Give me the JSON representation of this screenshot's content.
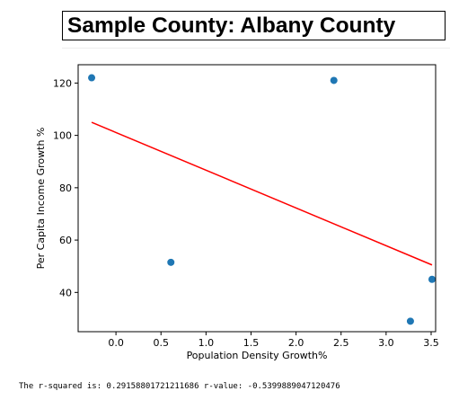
{
  "header": {
    "title": "Sample County: Albany County"
  },
  "stats": {
    "text": "The r-squared is: 0.29158801721211686 r-value: -0.5399889047120476"
  },
  "chart_data": {
    "type": "scatter",
    "title": "",
    "xlabel": "Population Density Growth%",
    "ylabel": "Per Capita Income Growth %",
    "xlim": [
      -0.42,
      3.55
    ],
    "ylim": [
      25,
      127
    ],
    "xticks": [
      0.0,
      0.5,
      1.0,
      1.5,
      2.0,
      2.5,
      3.0,
      3.5
    ],
    "xtick_labels": [
      "0.0",
      "0.5",
      "1.0",
      "1.5",
      "2.0",
      "2.5",
      "3.0",
      "3.5"
    ],
    "yticks": [
      40,
      60,
      80,
      100,
      120
    ],
    "ytick_labels": [
      "40",
      "60",
      "80",
      "100",
      "120"
    ],
    "grid": false,
    "points": [
      {
        "x": -0.27,
        "y": 122
      },
      {
        "x": 0.61,
        "y": 51.5
      },
      {
        "x": 2.42,
        "y": 121
      },
      {
        "x": 3.27,
        "y": 29
      },
      {
        "x": 3.51,
        "y": 45
      }
    ],
    "regression_line": {
      "x": [
        -0.27,
        3.51
      ],
      "y": [
        105,
        50.5
      ]
    },
    "colors": {
      "points": "#1f77b4",
      "regression_line": "#ff0000",
      "axes": "#000000"
    }
  }
}
